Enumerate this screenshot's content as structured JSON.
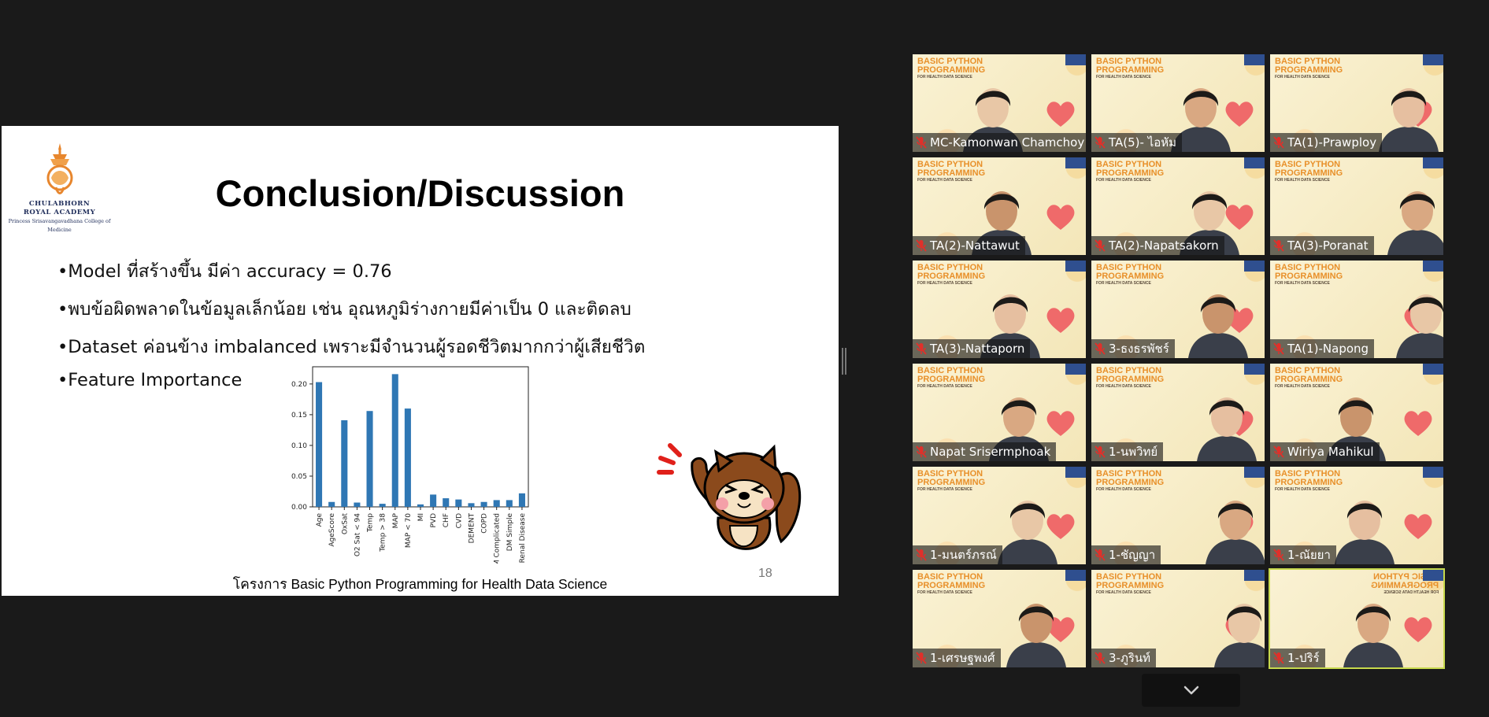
{
  "slide": {
    "logo": {
      "line1": "CHULABHORN",
      "line2": "ROYAL ACADEMY",
      "line3": "Princess Srisavangavadhana College of Medicine"
    },
    "title": "Conclusion/Discussion",
    "bullets": [
      "•Model ที่สร้างขึ้น มีค่า accuracy = 0.76",
      "•พบข้อผิดพลาดในข้อมูลเล็กน้อย เช่น อุณหภูมิร่างกายมีค่าเป็น 0 และติดลบ",
      "•Dataset ค่อนข้าง imbalanced เพราะมีจำนวนผู้รอดชีวิตมากกว่าผู้เสียชีวิต",
      "•Feature Importance"
    ],
    "footer": "โครงการ Basic Python Programming for Health Data Science",
    "page_number": "18",
    "mascot_icon": "chipmunk-waving-icon",
    "bar_color": "#2f77b4"
  },
  "chart_data": {
    "type": "bar",
    "categories": [
      "Age",
      "AgeScore",
      "OxSat",
      "O2 Sat < 94",
      "Temp",
      "Temp > 38",
      "MAP",
      "MAP < 70",
      "MI",
      "PVD",
      "CHF",
      "CVD",
      "DEMENT",
      "COPD",
      "DM Complicated",
      "DM Simple",
      "Renal Disease"
    ],
    "values": [
      0.203,
      0.008,
      0.141,
      0.007,
      0.156,
      0.005,
      0.216,
      0.16,
      0.004,
      0.02,
      0.014,
      0.012,
      0.006,
      0.008,
      0.011,
      0.011,
      0.022
    ],
    "ylim": [
      0,
      0.228
    ],
    "yticks": [
      "0.00",
      "0.05",
      "0.10",
      "0.15",
      "0.20"
    ],
    "title": "",
    "xlabel": "",
    "ylabel": ""
  },
  "tile_brand": {
    "line1": "BASIC PYTHON",
    "line2": "PROGRAMMING",
    "line3": "FOR HEALTH DATA SCIENCE"
  },
  "participants": [
    {
      "name": "MC-Kamonwan Chamchoy",
      "muted": true
    },
    {
      "name": "TA(5)- ไอหัม",
      "muted": true
    },
    {
      "name": "TA(1)-Prawploy",
      "muted": true
    },
    {
      "name": "TA(2)-Nattawut",
      "muted": true
    },
    {
      "name": "TA(2)-Napatsakorn",
      "muted": true
    },
    {
      "name": "TA(3)-Poranat",
      "muted": true
    },
    {
      "name": "TA(3)-Nattaporn",
      "muted": true
    },
    {
      "name": "3-ธงธรพัชร์",
      "muted": true
    },
    {
      "name": "TA(1)-Napong",
      "muted": true
    },
    {
      "name": "Napat Srisermphoak",
      "muted": true
    },
    {
      "name": "1-นพวิทย์",
      "muted": true
    },
    {
      "name": "Wiriya Mahikul",
      "muted": true
    },
    {
      "name": "1-มนตร์ภรณ์",
      "muted": true
    },
    {
      "name": "1-ชัญญา",
      "muted": true
    },
    {
      "name": "1-ณัยยา",
      "muted": true
    },
    {
      "name": "1-เศรษฐพงศ์",
      "muted": true
    },
    {
      "name": "3-ภูรินท์",
      "muted": true
    },
    {
      "name": "1-ปริร์",
      "muted": true,
      "active": true
    }
  ],
  "controls": {
    "more_icon": "chevron-down-icon",
    "mic_icon": "mic-muted-icon"
  },
  "colors": {
    "background": "#1a1a1a",
    "active_speaker": "#c7d94c",
    "muted_mic": "#e0302a",
    "brand_orange": "#e8902a"
  }
}
